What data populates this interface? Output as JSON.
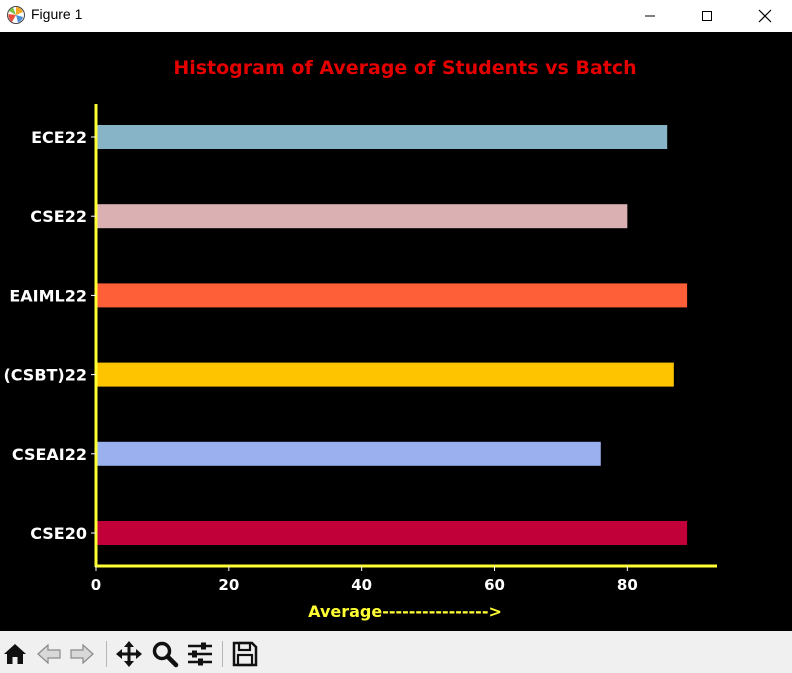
{
  "window": {
    "title": "Figure 1",
    "app_icon": "matplotlib-icon",
    "buttons": [
      "minimize-icon",
      "maximize-icon",
      "close-icon"
    ]
  },
  "toolbar": {
    "buttons": [
      "home-icon",
      "back-arrow-icon",
      "forward-arrow-icon",
      "pan-move-icon",
      "zoom-magnifier-icon",
      "configure-subplots-icon",
      "save-floppy-icon"
    ]
  },
  "colors": {
    "background": "#000000",
    "title": "#e50000",
    "axis_spine": "#ffff33",
    "xlabel": "#ffff33",
    "ticks": "#ffffff"
  },
  "chart_data": {
    "type": "bar",
    "orientation": "horizontal",
    "title": "Histogram of Average of Students vs Batch",
    "xlabel": "Average---------------->",
    "ylabel": "",
    "categories": [
      "CSE20",
      "CSEAI22",
      "(CSBT)22",
      "EAIML22",
      "CSE22",
      "ECE22"
    ],
    "values": [
      89,
      76,
      87,
      89,
      80,
      86
    ],
    "bar_colors": [
      "#c1003a",
      "#9bb0ee",
      "#ffc400",
      "#ff5f38",
      "#dbb0b2",
      "#87b4c6"
    ],
    "xticks": [
      0,
      20,
      40,
      60,
      80
    ],
    "xlim": [
      0,
      93.5
    ],
    "grid": false
  }
}
